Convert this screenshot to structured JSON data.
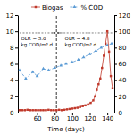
{
  "chart_data": {
    "type": "line",
    "xlabel": "Time (days)",
    "xlim": [
      38,
      148
    ],
    "xticks": [
      60,
      80,
      100,
      120,
      140
    ],
    "ylim": [
      0,
      12
    ],
    "yticks": [
      0,
      2,
      4,
      6,
      8,
      10,
      12
    ],
    "y2lim": [
      0,
      120
    ],
    "y2ticks": [
      0,
      20,
      40,
      60,
      80,
      100,
      120
    ],
    "legend": "top",
    "series": [
      {
        "name": "Biogas",
        "color": "#c0392b",
        "marker": "square",
        "line_style": "solid",
        "axis": "y",
        "x": [
          40,
          43,
          46,
          49,
          52,
          55,
          58,
          61,
          64,
          67,
          70,
          73,
          76,
          79,
          82,
          85,
          88,
          91,
          94,
          97,
          100,
          103,
          106,
          109,
          112,
          115,
          118,
          121,
          124,
          126,
          128,
          130,
          132,
          134,
          136,
          138,
          140,
          142,
          144,
          146
        ],
        "values": [
          0.3,
          0.3,
          0.3,
          0.35,
          0.3,
          0.3,
          0.3,
          0.3,
          0.3,
          0.3,
          0.3,
          0.35,
          0.3,
          0.3,
          0.3,
          0.35,
          0.3,
          0.35,
          0.4,
          0.45,
          0.5,
          0.55,
          0.6,
          0.7,
          0.8,
          0.9,
          1.0,
          1.2,
          1.5,
          2.0,
          2.8,
          3.5,
          4.2,
          5.5,
          7.0,
          8.5,
          10.0,
          7.5,
          4.5,
          3.0
        ]
      },
      {
        "name": "% COD",
        "color": "#5b9bd5",
        "marker": "triangle",
        "line_style": "dashed",
        "axis": "y2",
        "x": [
          40,
          47,
          55,
          60,
          67,
          73,
          80,
          87,
          93,
          100,
          107,
          113,
          120,
          127,
          133,
          140,
          145
        ],
        "values": [
          52,
          42,
          50,
          45,
          54,
          52,
          55,
          58,
          60,
          62,
          65,
          68,
          72,
          76,
          80,
          83,
          85
        ]
      }
    ],
    "vlines": [
      {
        "x": 82
      }
    ],
    "hlines": [
      {
        "y": 9.8,
        "x": [
          40,
          81
        ]
      },
      {
        "y": 9.8,
        "x": [
          83,
          147
        ]
      }
    ],
    "arrows": [
      {
        "x": [
          77,
          81
        ],
        "y": 9.8
      },
      {
        "x": [
          87,
          83
        ],
        "y": 9.8
      }
    ],
    "annotations": [
      {
        "text": "OLR = 3.0\nkg COD/m³.d",
        "x": 40,
        "y": 9.5
      },
      {
        "text": "OLR = 4.8\nkg COD/m³.d",
        "x": 90,
        "y": 9.5
      }
    ]
  }
}
